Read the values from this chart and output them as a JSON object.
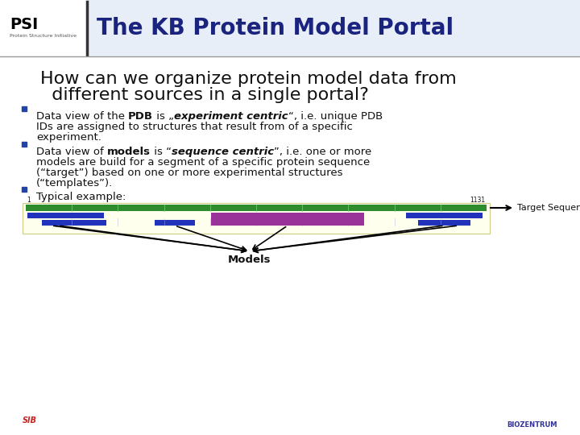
{
  "bg_color": "#ffffff",
  "header_title": "The KB Protein Model Portal",
  "header_title_color": "#1a237e",
  "header_title_size": 20,
  "question_line1": "How can we organize protein model data from",
  "question_line2": "  different sources in a single portal?",
  "question_color": "#111111",
  "question_size": 16,
  "bullet_color": "#2244aa",
  "text_color": "#111111",
  "text_size": 9.5,
  "diagram_bg": "#ffffee",
  "target_seq_color": "#2e8b2e",
  "model1_color": "#2233bb",
  "model2_color": "#2233bb",
  "model3_color": "#993399",
  "model4_color": "#2233bb",
  "arrow_color": "#000000",
  "models_label": "Models",
  "target_seq_text": "Target Sequence"
}
